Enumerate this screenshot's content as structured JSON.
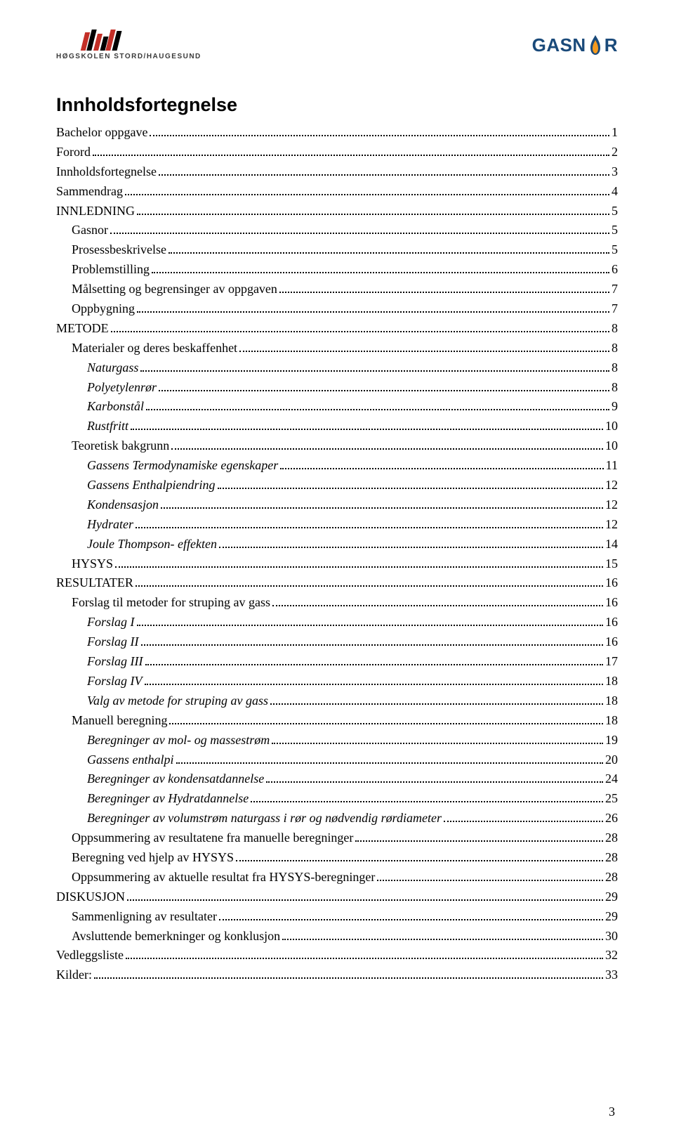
{
  "logos": {
    "left_text": "HØGSKOLEN STORD/HAUGESUND",
    "right_text_a": "GASN",
    "right_text_b": "R",
    "flame_outer": "#1a4a7a",
    "flame_inner": "#f59a1e"
  },
  "toc_title": "Innholdsfortegnelse",
  "page_num": "3",
  "entries": [
    {
      "label": "Bachelor oppgave",
      "page": "1",
      "indent": 0,
      "italic": false
    },
    {
      "label": "Forord",
      "page": "2",
      "indent": 0,
      "italic": false
    },
    {
      "label": "Innholdsfortegnelse",
      "page": "3",
      "indent": 0,
      "italic": false
    },
    {
      "label": "Sammendrag",
      "page": "4",
      "indent": 0,
      "italic": false
    },
    {
      "label": "INNLEDNING",
      "page": "5",
      "indent": 0,
      "italic": false
    },
    {
      "label": "Gasnor",
      "page": "5",
      "indent": 1,
      "italic": false
    },
    {
      "label": "Prosessbeskrivelse",
      "page": "5",
      "indent": 1,
      "italic": false
    },
    {
      "label": "Problemstilling",
      "page": "6",
      "indent": 1,
      "italic": false
    },
    {
      "label": "Målsetting og begrensinger av oppgaven",
      "page": "7",
      "indent": 1,
      "italic": false
    },
    {
      "label": "Oppbygning",
      "page": "7",
      "indent": 1,
      "italic": false
    },
    {
      "label": "METODE",
      "page": "8",
      "indent": 0,
      "italic": false
    },
    {
      "label": "Materialer og deres beskaffenhet",
      "page": "8",
      "indent": 1,
      "italic": false
    },
    {
      "label": "Naturgass",
      "page": "8",
      "indent": 2,
      "italic": true
    },
    {
      "label": "Polyetylenrør",
      "page": "8",
      "indent": 2,
      "italic": true
    },
    {
      "label": "Karbonstål",
      "page": "9",
      "indent": 2,
      "italic": true
    },
    {
      "label": "Rustfritt",
      "page": "10",
      "indent": 2,
      "italic": true
    },
    {
      "label": "Teoretisk bakgrunn",
      "page": "10",
      "indent": 1,
      "italic": false
    },
    {
      "label": "Gassens Termodynamiske egenskaper",
      "page": "11",
      "indent": 2,
      "italic": true
    },
    {
      "label": "Gassens Enthalpiendring",
      "page": "12",
      "indent": 2,
      "italic": true
    },
    {
      "label": "Kondensasjon",
      "page": "12",
      "indent": 2,
      "italic": true
    },
    {
      "label": "Hydrater",
      "page": "12",
      "indent": 2,
      "italic": true
    },
    {
      "label": "Joule Thompson- effekten",
      "page": "14",
      "indent": 2,
      "italic": true
    },
    {
      "label": "HYSYS",
      "page": "15",
      "indent": 1,
      "italic": false
    },
    {
      "label": "RESULTATER",
      "page": "16",
      "indent": 0,
      "italic": false
    },
    {
      "label": "Forslag til metoder for struping av gass",
      "page": "16",
      "indent": 1,
      "italic": false
    },
    {
      "label": "Forslag I",
      "page": "16",
      "indent": 2,
      "italic": true
    },
    {
      "label": "Forslag II",
      "page": "16",
      "indent": 2,
      "italic": true
    },
    {
      "label": "Forslag III",
      "page": "17",
      "indent": 2,
      "italic": true
    },
    {
      "label": "Forslag IV",
      "page": "18",
      "indent": 2,
      "italic": true
    },
    {
      "label": "Valg av metode for struping av gass",
      "page": "18",
      "indent": 2,
      "italic": true
    },
    {
      "label": "Manuell beregning",
      "page": "18",
      "indent": 1,
      "italic": false
    },
    {
      "label": "Beregninger av mol- og massestrøm",
      "page": "19",
      "indent": 2,
      "italic": true
    },
    {
      "label": "Gassens enthalpi",
      "page": "20",
      "indent": 2,
      "italic": true
    },
    {
      "label": "Beregninger av kondensatdannelse",
      "page": "24",
      "indent": 2,
      "italic": true
    },
    {
      "label": "Beregninger av Hydratdannelse",
      "page": "25",
      "indent": 2,
      "italic": true
    },
    {
      "label": "Beregninger av volumstrøm naturgass i rør og nødvendig rørdiameter",
      "page": "26",
      "indent": 2,
      "italic": true
    },
    {
      "label": "Oppsummering av resultatene fra manuelle beregninger",
      "page": "28",
      "indent": 1,
      "italic": false
    },
    {
      "label": "Beregning ved hjelp av HYSYS",
      "page": "28",
      "indent": 1,
      "italic": false
    },
    {
      "label": "Oppsummering av aktuelle resultat fra  HYSYS-beregninger",
      "page": "28",
      "indent": 1,
      "italic": false
    },
    {
      "label": "DISKUSJON",
      "page": "29",
      "indent": 0,
      "italic": false
    },
    {
      "label": "Sammenligning av resultater",
      "page": "29",
      "indent": 1,
      "italic": false
    },
    {
      "label": "Avsluttende bemerkninger og konklusjon",
      "page": "30",
      "indent": 1,
      "italic": false
    },
    {
      "label": "Vedleggsliste",
      "page": "32",
      "indent": 0,
      "italic": false
    },
    {
      "label": "Kilder:",
      "page": "33",
      "indent": 0,
      "italic": false
    }
  ]
}
